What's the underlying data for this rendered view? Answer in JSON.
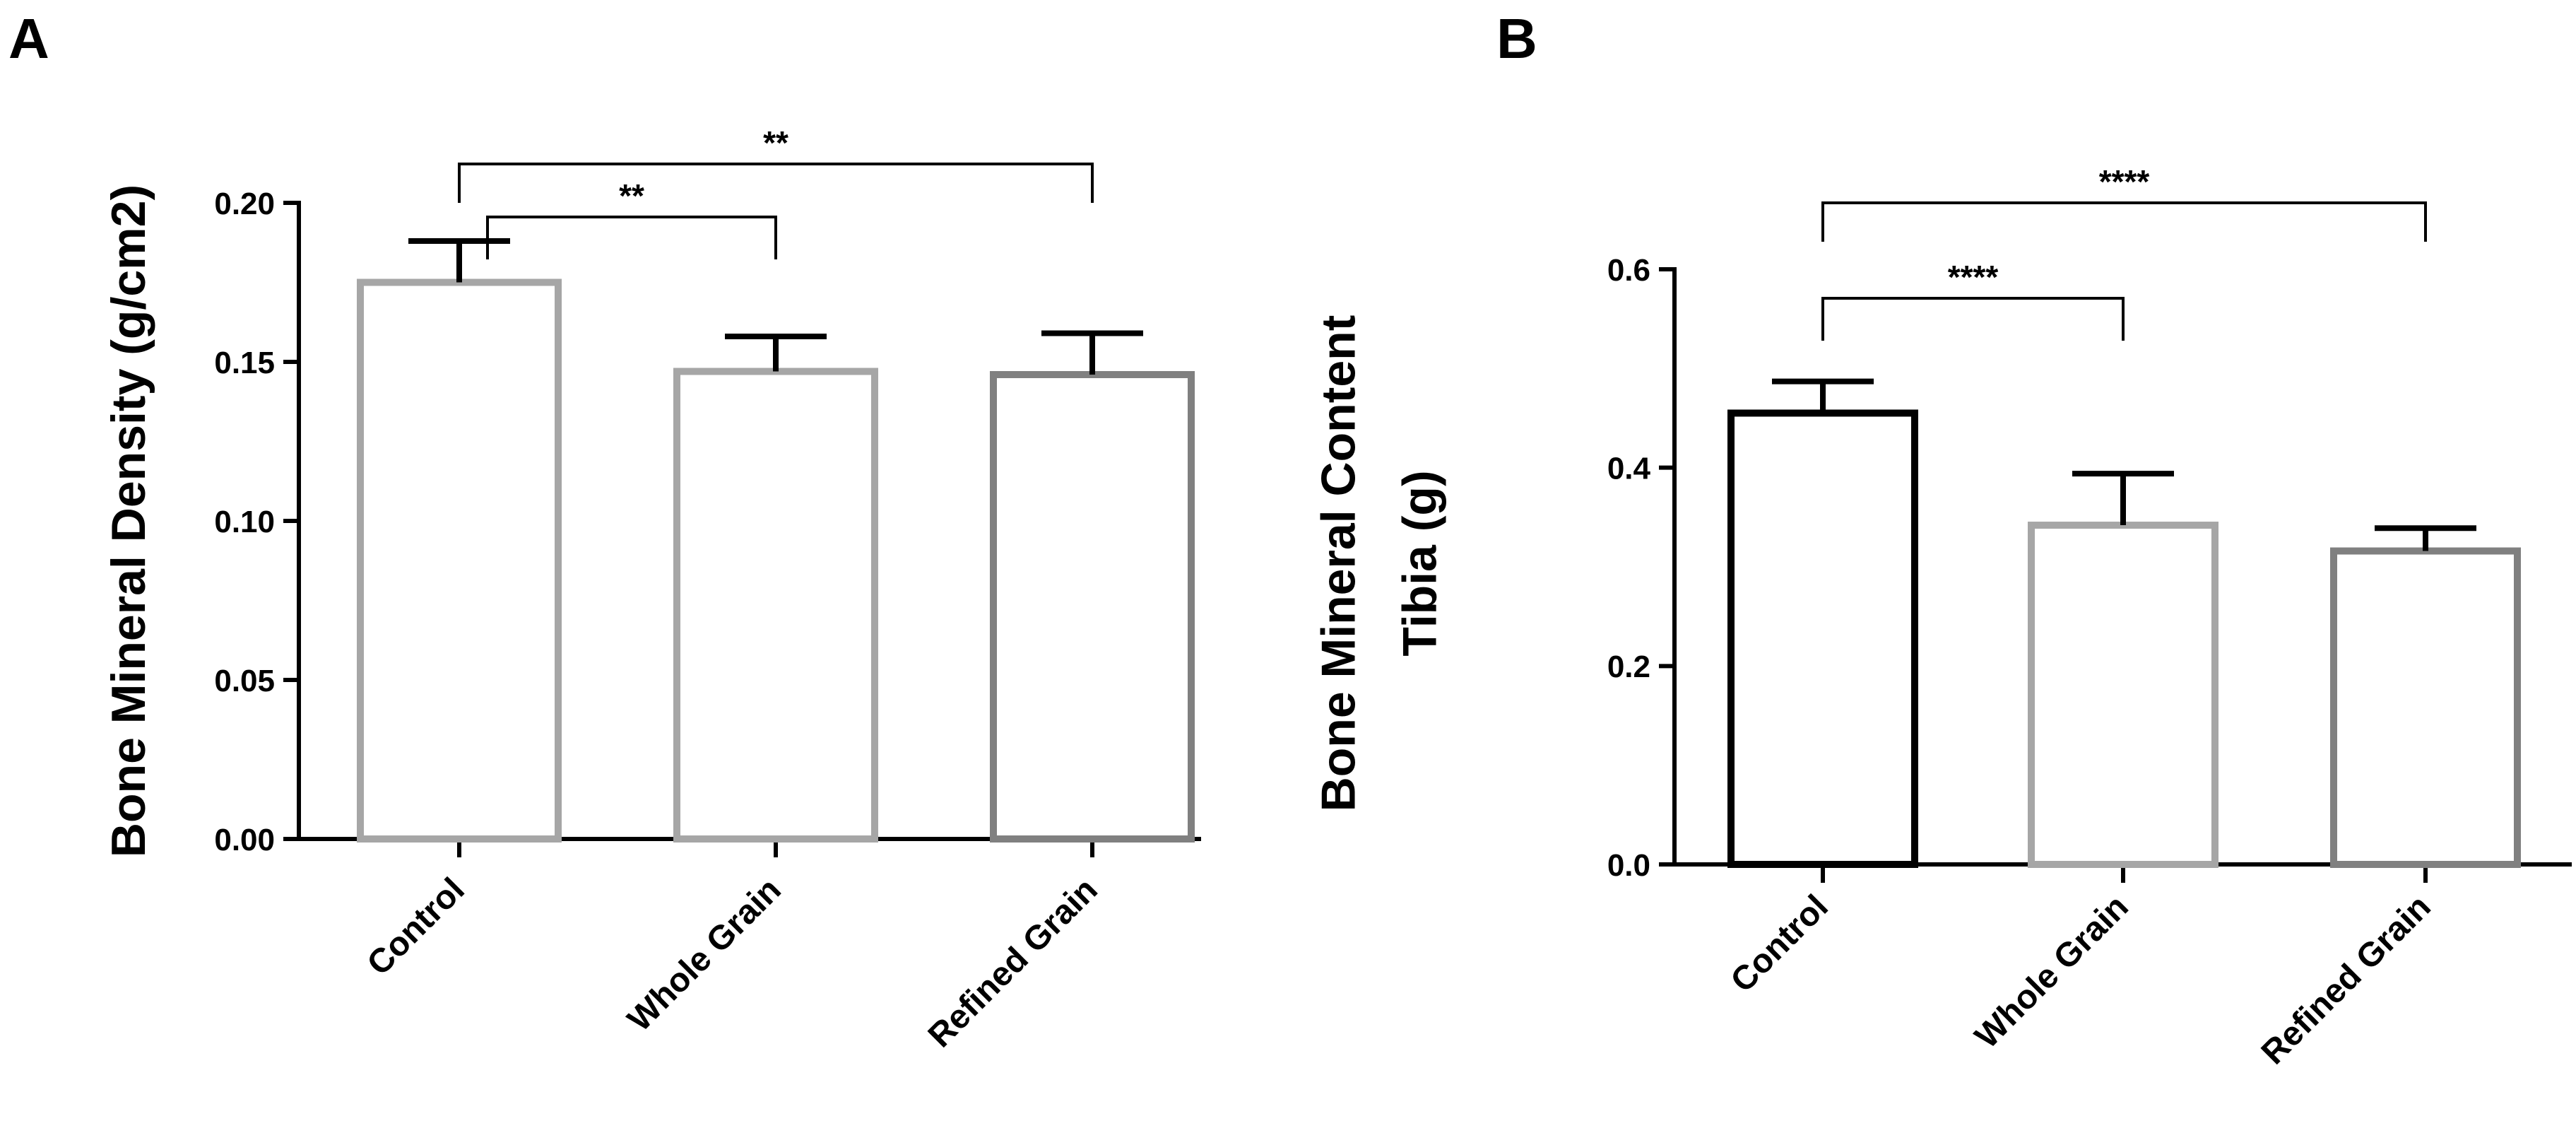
{
  "chart_data": [
    {
      "panel_label": "A",
      "type": "bar",
      "categories": [
        "Control",
        "Whole Grain",
        "Refined Grain"
      ],
      "values": [
        0.175,
        0.147,
        0.146
      ],
      "errors": [
        0.013,
        0.011,
        0.013
      ],
      "bar_colors": [
        "#a6a6a6",
        "#a6a6a6",
        "#808080"
      ],
      "title": "",
      "xlabel": "",
      "ylabel": "Bone Mineral Density (g/cm2)",
      "ylabel_lines": [
        "Bone Mineral Density (g/cm2)"
      ],
      "ylim": [
        0,
        0.2
      ],
      "yticks": [
        0,
        0.05,
        0.1,
        0.15,
        0.2
      ],
      "ytick_labels": [
        "0.00",
        "0.05",
        "0.10",
        "0.15",
        "0.20"
      ],
      "grid": false,
      "significance": [
        {
          "from": 0,
          "to": 1,
          "label": "**"
        },
        {
          "from": 0,
          "to": 2,
          "label": "**"
        }
      ]
    },
    {
      "panel_label": "B",
      "type": "bar",
      "categories": [
        "Control",
        "Whole Grain",
        "Refined Grain"
      ],
      "values": [
        0.455,
        0.342,
        0.316
      ],
      "errors": [
        0.032,
        0.052,
        0.023
      ],
      "bar_colors": [
        "#000000",
        "#a6a6a6",
        "#808080"
      ],
      "title": "",
      "xlabel": "",
      "ylabel": "Bone Mineral Content Tibia (g)",
      "ylabel_lines": [
        "Bone Mineral Content",
        "Tibia (g)"
      ],
      "ylim": [
        0,
        0.6
      ],
      "yticks": [
        0,
        0.2,
        0.4,
        0.6
      ],
      "ytick_labels": [
        "0.0",
        "0.2",
        "0.4",
        "0.6"
      ],
      "grid": false,
      "significance": [
        {
          "from": 0,
          "to": 1,
          "label": "****"
        },
        {
          "from": 0,
          "to": 2,
          "label": "****"
        }
      ]
    }
  ]
}
